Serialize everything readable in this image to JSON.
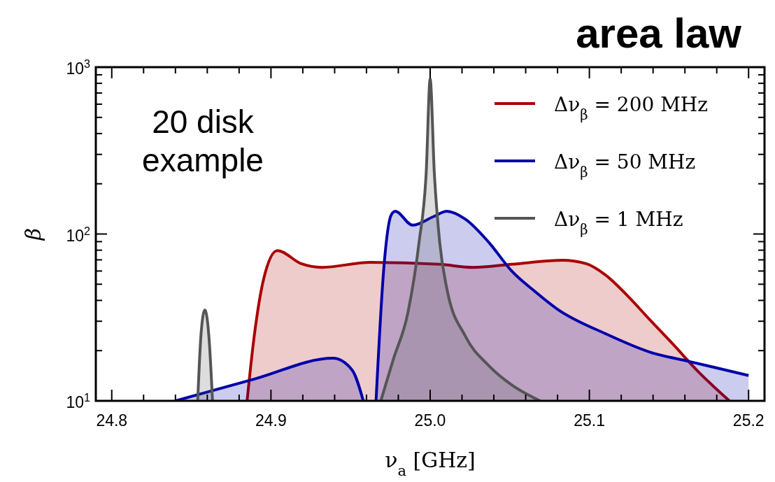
{
  "chart_data": {
    "type": "area",
    "title": "area law",
    "xlabel": "ν$_{a}$ [GHz]",
    "ylabel": "β",
    "annotations": [
      "20 disk\nexample"
    ],
    "log": "y",
    "legend": "top right",
    "grid": false,
    "xlim": [
      24.79,
      25.21
    ],
    "ylim": [
      10,
      1000
    ],
    "xticks": [
      24.8,
      {
        "value": 24.82,
        "label": null
      },
      {
        "value": 24.84,
        "label": null
      },
      {
        "value": 24.86,
        "label": null
      },
      {
        "value": 24.88,
        "label": null
      },
      24.9,
      {
        "value": 24.92,
        "label": null
      },
      {
        "value": 24.94,
        "label": null
      },
      {
        "value": 24.96,
        "label": null
      },
      {
        "value": 24.98,
        "label": null
      },
      {
        "value": 25.0,
        "label": "25.0"
      },
      {
        "value": 25.02,
        "label": null
      },
      {
        "value": 25.04,
        "label": null
      },
      {
        "value": 25.06,
        "label": null
      },
      {
        "value": 25.08,
        "label": null
      },
      25.1,
      {
        "value": 25.12,
        "label": null
      },
      {
        "value": 25.14,
        "label": null
      },
      {
        "value": 25.16,
        "label": null
      },
      {
        "value": 25.18,
        "label": null
      },
      25.2
    ],
    "yticks": [
      {
        "value": 10,
        "label": "10$^{1}$"
      },
      {
        "value": 20,
        "label": null
      },
      {
        "value": 30,
        "label": null
      },
      {
        "value": 40,
        "label": null
      },
      {
        "value": 50,
        "label": null
      },
      {
        "value": 60,
        "label": null
      },
      {
        "value": 70,
        "label": null
      },
      {
        "value": 80,
        "label": null
      },
      {
        "value": 90,
        "label": null
      },
      {
        "value": 100,
        "label": "10$^{2}$"
      },
      {
        "value": 200,
        "label": null
      },
      {
        "value": 300,
        "label": null
      },
      {
        "value": 400,
        "label": null
      },
      {
        "value": 500,
        "label": null
      },
      {
        "value": 600,
        "label": null
      },
      {
        "value": 700,
        "label": null
      },
      {
        "value": 800,
        "label": null
      },
      {
        "value": 900,
        "label": null
      },
      {
        "value": 1000,
        "label": "10$^{3}$"
      }
    ],
    "series": [
      {
        "name": "Δν$_{β}$ = 200 MHz",
        "color": "#aa0000",
        "x": [
          24.885,
          24.8895,
          24.8956,
          24.904,
          24.919,
          24.932,
          24.962,
          25.006,
          25.027,
          25.051,
          25.083,
          25.098,
          25.11,
          25.124,
          25.138,
          25.153,
          25.168,
          25.188
        ],
        "values": [
          10,
          24.5,
          54.7,
          79.6,
          66.4,
          63.1,
          67.6,
          65.8,
          63.1,
          65.8,
          69.7,
          66.4,
          56.9,
          42.6,
          30.6,
          21.6,
          15.1,
          10
        ]
      },
      {
        "name": "Δν$_{β}$ = 50 MHz",
        "color": "#0000aa",
        "x": [
          24.84,
          24.8895,
          24.939,
          24.951,
          24.958,
          24.962,
          24.966,
          24.971,
          24.9755,
          24.978,
          24.989,
          25.002,
          25.0105,
          25.022,
          25.037,
          25.051,
          25.066,
          25.08,
          25.11,
          25.138,
          25.163,
          25.2
        ],
        "values": [
          10,
          13.5,
          18,
          15.3,
          10,
          null,
          10,
          64.4,
          130,
          137,
          113,
          127,
          137,
          123,
          88.8,
          60.3,
          45.1,
          35.4,
          25.3,
          19.6,
          17.2,
          14.2
        ]
      },
      {
        "name": "Δν$_{β}$ = 1 MHz",
        "color": "#555555",
        "x": [
          24.854,
          24.856,
          24.8585,
          24.861,
          24.8633,
          24.92,
          24.969,
          24.977,
          24.986,
          24.993,
          24.9975,
          25.0,
          25.0026,
          25.006,
          25.0105,
          25.022,
          25.037,
          25.051,
          25.069
        ],
        "values": [
          10,
          24.5,
          35.1,
          24.5,
          10,
          null,
          10,
          17.9,
          33.7,
          88.8,
          233,
          849,
          233,
          88.8,
          46.9,
          24.5,
          16.2,
          12.5,
          10
        ]
      }
    ]
  }
}
